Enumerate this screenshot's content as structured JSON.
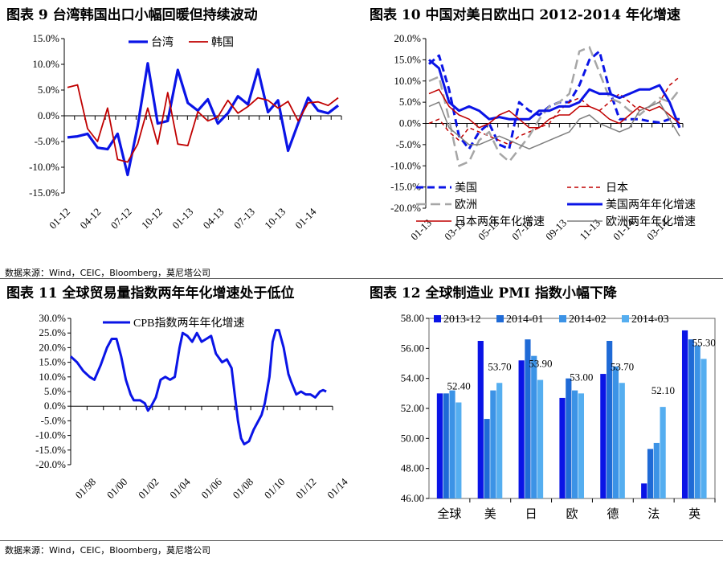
{
  "source_note": "数据来源：Wind，CEIC，Bloomberg，莫尼塔公司",
  "chart_data": [
    {
      "id": "c9",
      "type": "line",
      "title": "图表 9 台湾韩国出口小幅回暖但持续波动",
      "ylim": [
        -15,
        15
      ],
      "y_ticks": [
        "15.0%",
        "10.0%",
        "5.0%",
        "0.0%",
        "-5.0%",
        "-10.0%",
        "-15.0%"
      ],
      "x_ticks": [
        "01-12",
        "04-12",
        "07-12",
        "10-12",
        "01-13",
        "04-13",
        "07-13",
        "10-13",
        "01-14"
      ],
      "series": [
        {
          "name": "台湾",
          "color": "#0a14e6",
          "width": 3.2,
          "values": [
            -4.2,
            -4.0,
            -3.5,
            -6.2,
            -6.5,
            -3.5,
            -11.5,
            -2.0,
            10.2,
            -1.5,
            -1.0,
            8.9,
            2.5,
            1.0,
            3.2,
            -1.5,
            0.5,
            3.8,
            2.2,
            9.0,
            0.7,
            3.0,
            -6.8,
            -1.5,
            3.5,
            1.0,
            0.5,
            2.0
          ]
        },
        {
          "name": "韩国",
          "color": "#c00000",
          "width": 1.8,
          "values": [
            5.5,
            6.0,
            -2.5,
            -5.0,
            1.5,
            -8.5,
            -9.0,
            -5.5,
            1.5,
            -5.5,
            4.5,
            -5.5,
            -5.8,
            0.8,
            -1.0,
            -0.2,
            3.0,
            0.5,
            1.8,
            3.5,
            3.0,
            1.5,
            2.8,
            -1.0,
            2.5,
            2.7,
            2.0,
            3.5
          ]
        }
      ]
    },
    {
      "id": "c10",
      "type": "line",
      "title": "图表 10 中国对美日欧出口 2012-2014 年化增速",
      "ylim": [
        -20,
        20
      ],
      "y_ticks": [
        "20.0%",
        "15.0%",
        "10.0%",
        "5.0%",
        "0.0%",
        "-5.0%",
        "-10.0%",
        "-15.0%",
        "-20.0%"
      ],
      "x_ticks": [
        "01-13",
        "03-13",
        "05-13",
        "07-13",
        "09-13",
        "11-13",
        "01-14",
        "03-14"
      ],
      "legend": [
        "美国",
        "日本",
        "欧洲",
        "美国两年年化增速",
        "日本两年年化增速",
        "欧洲两年年化增速"
      ],
      "series": [
        {
          "name": "美国",
          "color": "#0a14e6",
          "width": 3,
          "dash": "9,5",
          "values": [
            14,
            16,
            8,
            -3,
            -6,
            -2,
            0,
            -5,
            -6,
            5,
            3,
            2,
            4,
            5,
            5,
            9,
            15,
            17,
            8,
            1,
            1,
            1,
            0.5,
            0.2,
            1,
            1
          ]
        },
        {
          "name": "日本",
          "color": "#c00000",
          "width": 1.5,
          "dash": "5,4",
          "values": [
            0,
            1,
            -2,
            -4,
            -1,
            -2,
            -3,
            -4,
            -5,
            -3,
            -2,
            -1,
            0,
            3,
            5,
            6,
            4,
            3,
            5,
            7,
            5,
            3,
            4,
            5,
            9,
            11
          ]
        },
        {
          "name": "欧洲",
          "color": "#a6a6a6",
          "width": 2.5,
          "dash": "12,6",
          "values": [
            10,
            11,
            1,
            -10,
            -9,
            -4,
            -2,
            -7,
            -9,
            -6,
            -3,
            1,
            4,
            5,
            7,
            17,
            18,
            12,
            6,
            5,
            3,
            2,
            4,
            6,
            5,
            8
          ]
        },
        {
          "name": "美国两年年化增速",
          "color": "#0a14e6",
          "width": 3,
          "values": [
            15,
            13,
            5,
            3,
            4,
            3,
            1,
            1.5,
            1,
            1,
            1,
            3,
            3,
            4,
            4,
            5,
            8,
            7,
            7,
            6,
            7,
            8,
            8,
            9,
            5,
            -1
          ]
        },
        {
          "name": "日本两年年化增速",
          "color": "#c00000",
          "width": 1.5,
          "values": [
            7,
            8,
            4,
            2,
            1,
            -1,
            0,
            2,
            3,
            1,
            -1,
            -1,
            1,
            2,
            2,
            4,
            4,
            3,
            1,
            0,
            2,
            4,
            3,
            4,
            2,
            0
          ]
        },
        {
          "name": "欧洲两年年化增速",
          "color": "#7f7f7f",
          "width": 1.5,
          "values": [
            4,
            5,
            -1,
            -3,
            -5,
            -5,
            -4,
            -3,
            -4,
            -5,
            -6,
            -5,
            -4,
            -3,
            -2,
            1,
            2,
            0,
            -1,
            -2,
            -1,
            3,
            4,
            5,
            1,
            -3
          ]
        }
      ]
    },
    {
      "id": "c11",
      "type": "line",
      "title": "图表 11 全球贸易量指数两年年化增速处于低位",
      "ylim": [
        -20,
        30
      ],
      "y_ticks": [
        "30.0%",
        "25.0%",
        "20.0%",
        "15.0%",
        "10.0%",
        "5.0%",
        "0.0%",
        "-5.0%",
        "-10.0%",
        "-15.0%",
        "-20.0%"
      ],
      "x_ticks": [
        "01/98",
        "01/00",
        "01/02",
        "01/04",
        "01/06",
        "01/08",
        "01/10",
        "01/12",
        "01/14"
      ],
      "series": [
        {
          "name": "CPB指数两年年化增速",
          "color": "#0a14e6",
          "width": 3,
          "points": [
            [
              1998.0,
              17
            ],
            [
              1998.4,
              15
            ],
            [
              1998.8,
              12
            ],
            [
              1999.2,
              10
            ],
            [
              1999.5,
              9
            ],
            [
              1999.9,
              14
            ],
            [
              2000.3,
              20
            ],
            [
              2000.6,
              23
            ],
            [
              2000.9,
              23
            ],
            [
              2001.2,
              17
            ],
            [
              2001.5,
              9
            ],
            [
              2001.8,
              4
            ],
            [
              2002.0,
              2
            ],
            [
              2002.4,
              2
            ],
            [
              2002.7,
              1
            ],
            [
              2002.9,
              -1.5
            ],
            [
              2003.1,
              0
            ],
            [
              2003.4,
              3
            ],
            [
              2003.7,
              9
            ],
            [
              2004.0,
              10
            ],
            [
              2004.3,
              9
            ],
            [
              2004.6,
              10
            ],
            [
              2004.9,
              20
            ],
            [
              2005.1,
              25
            ],
            [
              2005.4,
              24
            ],
            [
              2005.7,
              22
            ],
            [
              2006.0,
              25
            ],
            [
              2006.3,
              22
            ],
            [
              2006.6,
              23
            ],
            [
              2006.9,
              24
            ],
            [
              2007.2,
              18
            ],
            [
              2007.6,
              15
            ],
            [
              2007.9,
              16
            ],
            [
              2008.2,
              13
            ],
            [
              2008.4,
              4
            ],
            [
              2008.6,
              -5
            ],
            [
              2008.8,
              -11
            ],
            [
              2009.0,
              -13
            ],
            [
              2009.3,
              -12
            ],
            [
              2009.6,
              -8
            ],
            [
              2009.9,
              -5
            ],
            [
              2010.1,
              -3
            ],
            [
              2010.3,
              1
            ],
            [
              2010.6,
              10
            ],
            [
              2010.8,
              22
            ],
            [
              2011.0,
              26
            ],
            [
              2011.2,
              26
            ],
            [
              2011.5,
              20
            ],
            [
              2011.8,
              11
            ],
            [
              2012.0,
              8
            ],
            [
              2012.3,
              4
            ],
            [
              2012.6,
              5
            ],
            [
              2012.9,
              4
            ],
            [
              2013.2,
              4
            ],
            [
              2013.5,
              3
            ],
            [
              2013.8,
              5
            ],
            [
              2014.0,
              5.5
            ],
            [
              2014.2,
              5
            ]
          ]
        }
      ]
    },
    {
      "id": "c12",
      "type": "bar",
      "title": "图表 12 全球制造业 PMI 指数小幅下降",
      "ylim": [
        46,
        58
      ],
      "y_ticks": [
        "58.00",
        "56.00",
        "54.00",
        "52.00",
        "50.00",
        "48.00",
        "46.00"
      ],
      "categories": [
        "全球",
        "美",
        "日",
        "欧",
        "德",
        "法",
        "英"
      ],
      "series": [
        {
          "name": "2013-12",
          "color": "#0a14e6",
          "values": [
            53.0,
            56.5,
            55.2,
            52.7,
            54.3,
            47.0,
            57.2
          ]
        },
        {
          "name": "2014-01",
          "color": "#1f6ad6",
          "values": [
            53.0,
            51.3,
            56.6,
            54.0,
            56.5,
            49.3,
            56.6
          ]
        },
        {
          "name": "2014-02",
          "color": "#3c93e6",
          "values": [
            53.2,
            53.2,
            55.5,
            53.2,
            54.8,
            49.7,
            56.2
          ]
        },
        {
          "name": "2014-03",
          "color": "#55aef0",
          "values": [
            52.4,
            53.7,
            53.9,
            53.0,
            53.7,
            52.1,
            55.3
          ]
        }
      ],
      "data_labels": [
        [
          0,
          "52.40"
        ],
        [
          1,
          "53.70"
        ],
        [
          2,
          "53.90"
        ],
        [
          3,
          "53.00"
        ],
        [
          4,
          "53.70"
        ],
        [
          5,
          "52.10"
        ],
        [
          6,
          "55.30"
        ]
      ]
    }
  ]
}
